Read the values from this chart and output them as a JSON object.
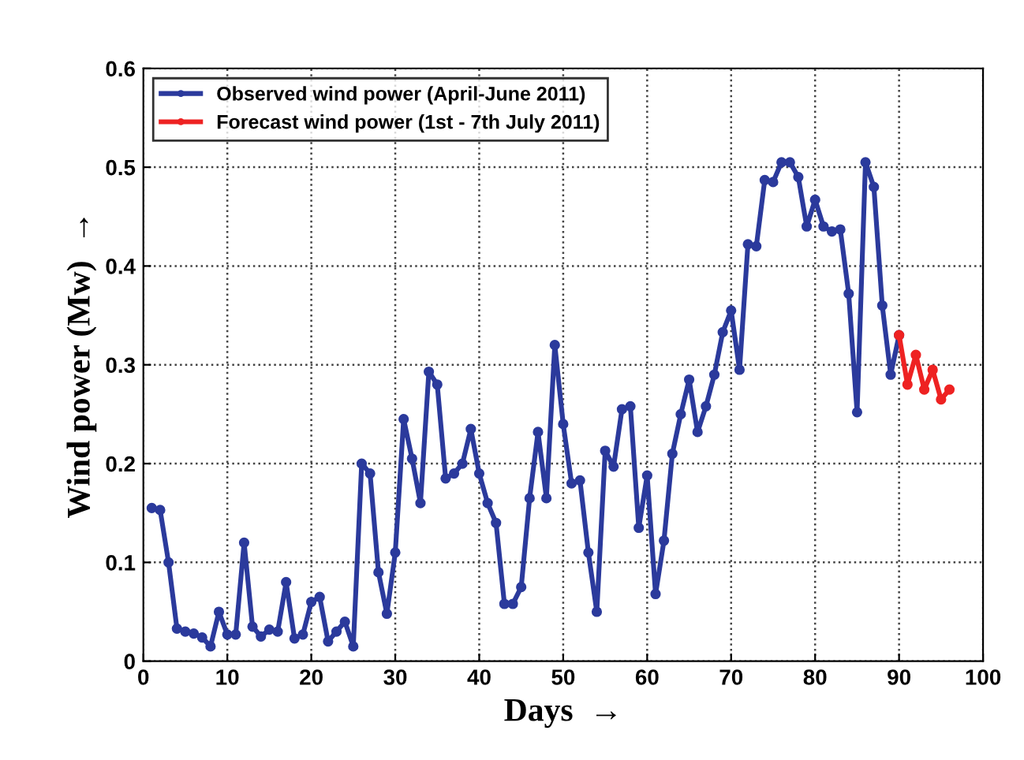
{
  "chart_data": {
    "type": "line",
    "xlabel": "Days  →",
    "ylabel": "Wind power (Mw)  →",
    "xlim": [
      0,
      100
    ],
    "xticks": [
      0,
      10,
      20,
      30,
      40,
      50,
      60,
      70,
      80,
      90,
      100
    ],
    "ylim": [
      0,
      0.6
    ],
    "yticks": [
      0,
      0.1,
      0.2,
      0.3,
      0.4,
      0.5,
      0.6
    ],
    "grid": true,
    "legend": "top left",
    "marker": "circle",
    "line_style": "solid",
    "series": [
      {
        "name": "Observed wind power (April-June 2011)",
        "color": "#2b3a9c",
        "x": [
          1,
          2,
          3,
          4,
          5,
          6,
          7,
          8,
          9,
          10,
          11,
          12,
          13,
          14,
          15,
          16,
          17,
          18,
          19,
          20,
          21,
          22,
          23,
          24,
          25,
          26,
          27,
          28,
          29,
          30,
          31,
          32,
          33,
          34,
          35,
          36,
          37,
          38,
          39,
          40,
          41,
          42,
          43,
          44,
          45,
          46,
          47,
          48,
          49,
          50,
          51,
          52,
          53,
          54,
          55,
          56,
          57,
          58,
          59,
          60,
          61,
          62,
          63,
          64,
          65,
          66,
          67,
          68,
          69,
          70,
          71,
          72,
          73,
          74,
          75,
          76,
          77,
          78,
          79,
          80,
          81,
          82,
          83,
          84,
          85,
          86,
          87,
          88,
          89,
          90
        ],
        "values": [
          0.155,
          0.153,
          0.1,
          0.033,
          0.03,
          0.028,
          0.024,
          0.015,
          0.05,
          0.027,
          0.027,
          0.12,
          0.035,
          0.025,
          0.032,
          0.03,
          0.08,
          0.023,
          0.027,
          0.06,
          0.065,
          0.02,
          0.03,
          0.04,
          0.015,
          0.2,
          0.19,
          0.09,
          0.048,
          0.11,
          0.245,
          0.205,
          0.16,
          0.293,
          0.28,
          0.185,
          0.19,
          0.2,
          0.235,
          0.19,
          0.16,
          0.14,
          0.058,
          0.058,
          0.075,
          0.165,
          0.232,
          0.165,
          0.32,
          0.24,
          0.18,
          0.183,
          0.11,
          0.05,
          0.213,
          0.197,
          0.255,
          0.258,
          0.135,
          0.188,
          0.068,
          0.122,
          0.21,
          0.25,
          0.285,
          0.232,
          0.258,
          0.29,
          0.333,
          0.355,
          0.295,
          0.422,
          0.42,
          0.487,
          0.485,
          0.505,
          0.505,
          0.49,
          0.44,
          0.467,
          0.44,
          0.435,
          0.437,
          0.372,
          0.252,
          0.505,
          0.48,
          0.36,
          0.29,
          0.33
        ]
      },
      {
        "name": "Forecast wind power (1st - 7th July 2011)",
        "color": "#ee2222",
        "x": [
          90,
          91,
          92,
          93,
          94,
          95,
          96
        ],
        "values": [
          0.33,
          0.28,
          0.31,
          0.275,
          0.295,
          0.265,
          0.275
        ]
      }
    ]
  }
}
